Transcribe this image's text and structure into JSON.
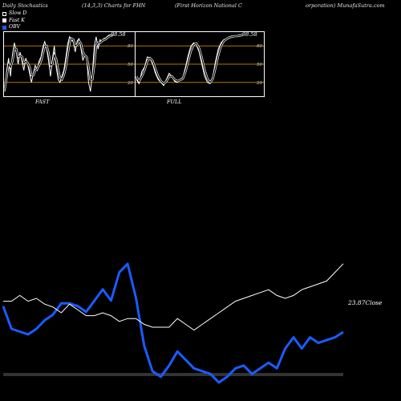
{
  "header": {
    "title": "Daily Stochastics",
    "params": "(14,3,3) Charts for FHN",
    "company_part1": "(First Horizon  National  C",
    "company_part2": "orporation) MunafaSutra.com"
  },
  "legend": [
    {
      "label": "Slow  D",
      "color": "#000000",
      "border": "#ffffff"
    },
    {
      "label": "Fast K",
      "color": "#ffffff",
      "border": "#ffffff"
    },
    {
      "label": "OBV",
      "color": "#1a5cff",
      "border": "#1a5cff"
    }
  ],
  "panels": {
    "fast_label": "FAST",
    "full_label": "FULL"
  },
  "colors": {
    "background": "#000000",
    "grid": "#b07800",
    "obv": "#1a5cff",
    "price": "#ffffff"
  },
  "chart_data": [
    {
      "type": "line",
      "name": "fast",
      "ylim": [
        0,
        100
      ],
      "yticks": [
        "80",
        "50",
        "20"
      ],
      "last_value_label": "98.58",
      "series": [
        {
          "name": "Fast K",
          "values": [
            5,
            40,
            60,
            30,
            65,
            85,
            72,
            50,
            70,
            55,
            40,
            60,
            50,
            35,
            20,
            35,
            48,
            40,
            55,
            62,
            78,
            87,
            75,
            55,
            30,
            58,
            80,
            45,
            25,
            20,
            30,
            40,
            60,
            82,
            95,
            90,
            86,
            70,
            88,
            92,
            76,
            56,
            65,
            60,
            20,
            5,
            35,
            80,
            95,
            75,
            90,
            88,
            92,
            93,
            96,
            98,
            97,
            98.58
          ]
        },
        {
          "name": "Slow  D",
          "values": [
            10,
            30,
            50,
            45,
            55,
            75,
            75,
            62,
            64,
            62,
            52,
            55,
            52,
            45,
            32,
            32,
            40,
            42,
            48,
            55,
            68,
            80,
            80,
            68,
            48,
            50,
            65,
            58,
            40,
            28,
            25,
            32,
            45,
            65,
            85,
            92,
            90,
            80,
            82,
            88,
            84,
            70,
            64,
            62,
            45,
            25,
            25,
            50,
            80,
            85,
            85,
            88,
            90,
            91,
            94,
            96,
            97,
            98
          ]
        }
      ]
    },
    {
      "type": "line",
      "name": "full",
      "ylim": [
        0,
        100
      ],
      "yticks": [
        "80",
        "50",
        "20"
      ],
      "last_value_label": "98.58",
      "series": [
        {
          "name": "Fast K",
          "values": [
            25,
            18,
            38,
            45,
            62,
            60,
            50,
            35,
            25,
            20,
            15,
            25,
            35,
            30,
            22,
            20,
            25,
            28,
            45,
            65,
            80,
            85,
            82,
            70,
            50,
            30,
            20,
            18,
            30,
            55,
            75,
            85,
            90,
            92,
            95,
            96,
            96,
            97,
            98,
            98.58
          ]
        },
        {
          "name": "Slow  D",
          "values": [
            30,
            22,
            30,
            40,
            55,
            60,
            55,
            42,
            30,
            22,
            18,
            22,
            30,
            30,
            25,
            22,
            24,
            26,
            38,
            55,
            72,
            82,
            84,
            76,
            60,
            40,
            26,
            20,
            26,
            45,
            65,
            80,
            88,
            91,
            94,
            95,
            96,
            96,
            97,
            98
          ]
        }
      ]
    },
    {
      "type": "line",
      "name": "obv-price",
      "annotation": "23.87Close",
      "series": [
        {
          "name": "OBV",
          "values": [
            68,
            68,
            72,
            68,
            70,
            66,
            64,
            60,
            66,
            62,
            58,
            58,
            60,
            58,
            54,
            56,
            56,
            52,
            50,
            50,
            50,
            56,
            52,
            48,
            52,
            56,
            60,
            64,
            68,
            70,
            72,
            74,
            76,
            72,
            70,
            72,
            76,
            78,
            80,
            82,
            88,
            94
          ]
        },
        {
          "name": "Close",
          "values": [
            33,
            25,
            24,
            23,
            25,
            28,
            30,
            34,
            34,
            33,
            31,
            35,
            39,
            35,
            45,
            48,
            36,
            19,
            10,
            8,
            12,
            17,
            14,
            11,
            10,
            9,
            6,
            8,
            11,
            12,
            9,
            11,
            13,
            11,
            18,
            22,
            18,
            22,
            20,
            21,
            22,
            23.87
          ]
        }
      ]
    }
  ]
}
